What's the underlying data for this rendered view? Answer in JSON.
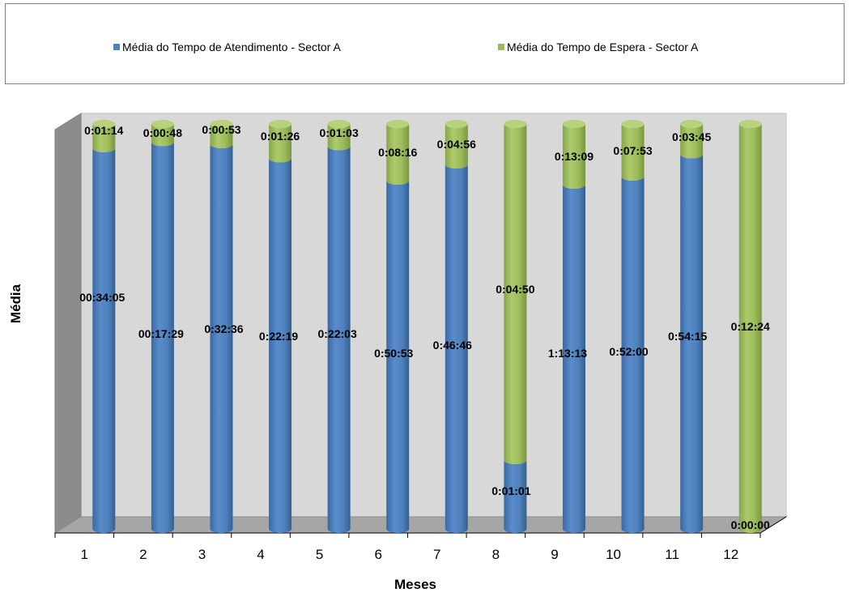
{
  "chart_data": {
    "type": "bar",
    "stacked": true,
    "style": "3d-cylinder",
    "xlabel": "Meses",
    "ylabel": "Média",
    "categories": [
      "1",
      "2",
      "3",
      "4",
      "5",
      "6",
      "7",
      "8",
      "9",
      "10",
      "11",
      "12"
    ],
    "series": [
      {
        "name": "Média do Tempo de Atendimento - Sector A",
        "color": "#4f81bd",
        "labels": [
          "00:34:05",
          "00:17:29",
          "0:32:36",
          "0:22:19",
          "0:22:03",
          "0:50:53",
          "0:46:46",
          "0:01:01",
          "1:13:13",
          "0:52:00",
          "0:54:15",
          "0:00:00"
        ],
        "fraction": [
          0.94,
          0.955,
          0.95,
          0.915,
          0.945,
          0.86,
          0.9,
          0.17,
          0.85,
          0.87,
          0.925,
          0.0
        ]
      },
      {
        "name": "Média do Tempo de Espera - Sector A",
        "color": "#9bbb59",
        "labels": [
          "0:01:14",
          "0:00:48",
          "0:00:53",
          "0:01:26",
          "0:01:03",
          "0:08:16",
          "0:04:56",
          "0:04:50",
          "0:13:09",
          "0:07:53",
          "0:03:45",
          "0:12:24"
        ],
        "fraction": [
          0.06,
          0.045,
          0.05,
          0.085,
          0.055,
          0.14,
          0.1,
          0.83,
          0.15,
          0.13,
          0.075,
          1.0
        ]
      }
    ],
    "value_note": "Each column is 100% stacked; fraction is share of column height.",
    "legend_position": "top",
    "grid": false
  }
}
